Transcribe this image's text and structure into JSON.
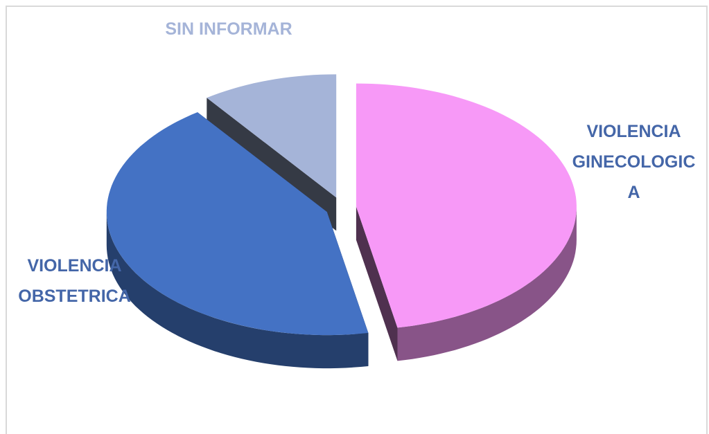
{
  "chart_data": {
    "type": "pie",
    "categories": [
      "VIOLENCIA GINECOLOGICA",
      "VIOLENCIA OBSTETRICA",
      "SIN INFORMAR"
    ],
    "values": [
      47,
      43,
      10
    ],
    "colors": [
      "#f799f7",
      "#4472c4",
      "#a5b4d8"
    ]
  }
}
